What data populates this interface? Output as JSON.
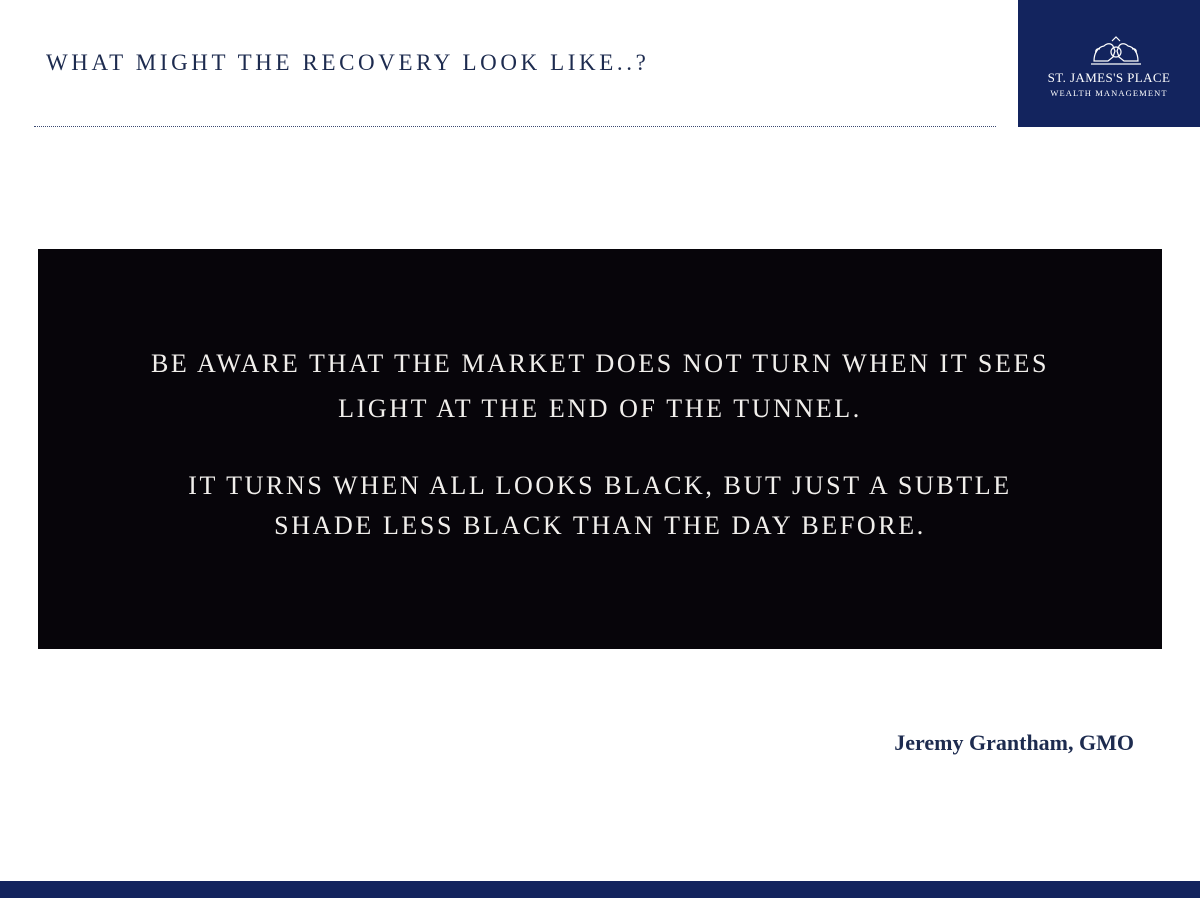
{
  "slide": {
    "title": "WHAT MIGHT THE RECOVERY LOOK LIKE..?"
  },
  "logo": {
    "name": "ST. JAMES'S PLACE",
    "subtitle": "WEALTH MANAGEMENT",
    "crest_icon": "lion-unicorn-crest-icon",
    "background_color": "#13245e"
  },
  "quote": {
    "lines": [
      "BE AWARE THAT THE MARKET DOES NOT TURN WHEN IT SEES",
      "LIGHT AT THE END OF THE TUNNEL.",
      "IT TURNS WHEN ALL LOOKS BLACK, BUT JUST A SUBTLE",
      "SHADE LESS BLACK THAN THE DAY BEFORE."
    ],
    "background_color": "#07050a",
    "text_color": "#f1efec"
  },
  "attribution": {
    "text": "Jeremy Grantham, GMO"
  },
  "colors": {
    "brand_navy": "#13245e",
    "title_text": "#1d2b4f"
  }
}
